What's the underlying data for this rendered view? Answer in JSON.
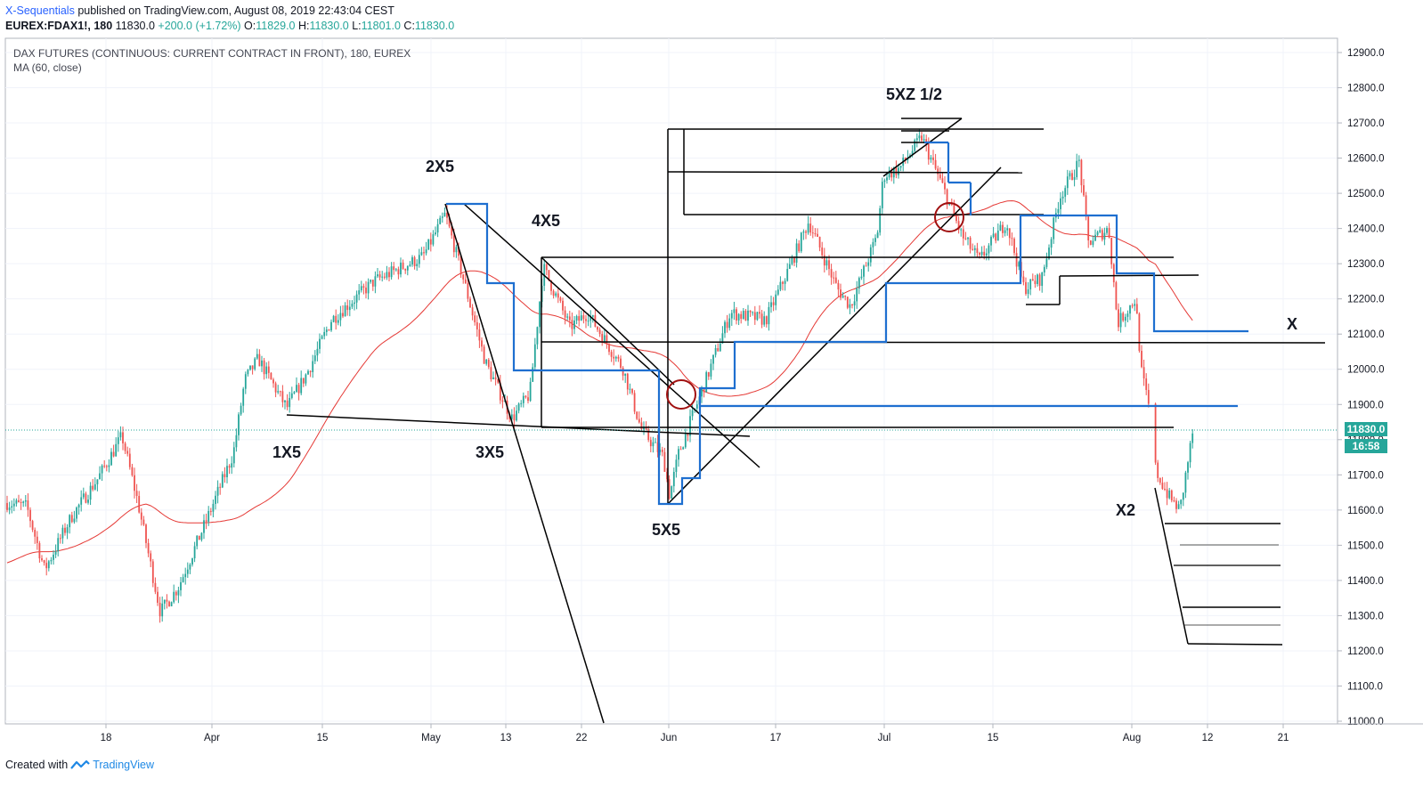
{
  "header": {
    "author": "X-Sequentials",
    "published": "published on TradingView.com, August 08, 2019 22:43:04 CEST"
  },
  "quote": {
    "symbol": "EUREX:FDAX1!, 180",
    "last": "11830.0",
    "change": "+200.0 (+1.72%)",
    "o_label": "O:",
    "o_value": "11829.0",
    "h_label": "H:",
    "h_value": "11830.0",
    "l_label": "L:",
    "l_value": "11801.0",
    "c_label": "C:",
    "c_value": "11830.0"
  },
  "legend": {
    "title": "DAX FUTURES (CONTINUOUS: CURRENT CONTRACT IN FRONT), 180, EUREX",
    "indicator": "MA (60, close)"
  },
  "price_tag": {
    "price": "11830.0",
    "countdown": "16:58"
  },
  "annotations": {
    "a1x5": "1X5",
    "a2x5": "2X5",
    "a3x5": "3X5",
    "a4x5": "4X5",
    "a5x5": "5X5",
    "a5xz": "5XZ 1/2",
    "ax": "X",
    "ax2": "X2"
  },
  "footer": {
    "created": "Created with",
    "brand": "TradingView"
  },
  "colors": {
    "up": "#26a69a",
    "down": "#ef5350",
    "ma": "#e53935",
    "blue_line": "#1e6fd0",
    "black_line": "#000000",
    "circle": "#a01010",
    "last_price": "#26a69a"
  },
  "chart_data": {
    "type": "candlestick",
    "ylim": [
      11000,
      12900
    ],
    "y_ticks": [
      "12900.0",
      "12800.0",
      "12700.0",
      "12600.0",
      "12500.0",
      "12400.0",
      "12300.0",
      "12200.0",
      "12100.0",
      "12000.0",
      "11900.0",
      "11800.0",
      "11700.0",
      "11600.0",
      "11500.0",
      "11400.0",
      "11300.0",
      "11200.0",
      "11100.0",
      "11000.0"
    ],
    "x_ticks": [
      "18",
      "Apr",
      "15",
      "May",
      "13",
      "22",
      "Jun",
      "17",
      "Jul",
      "15",
      "Aug",
      "12",
      "21"
    ],
    "ma_period": 60,
    "last_price": 11830.0
  }
}
